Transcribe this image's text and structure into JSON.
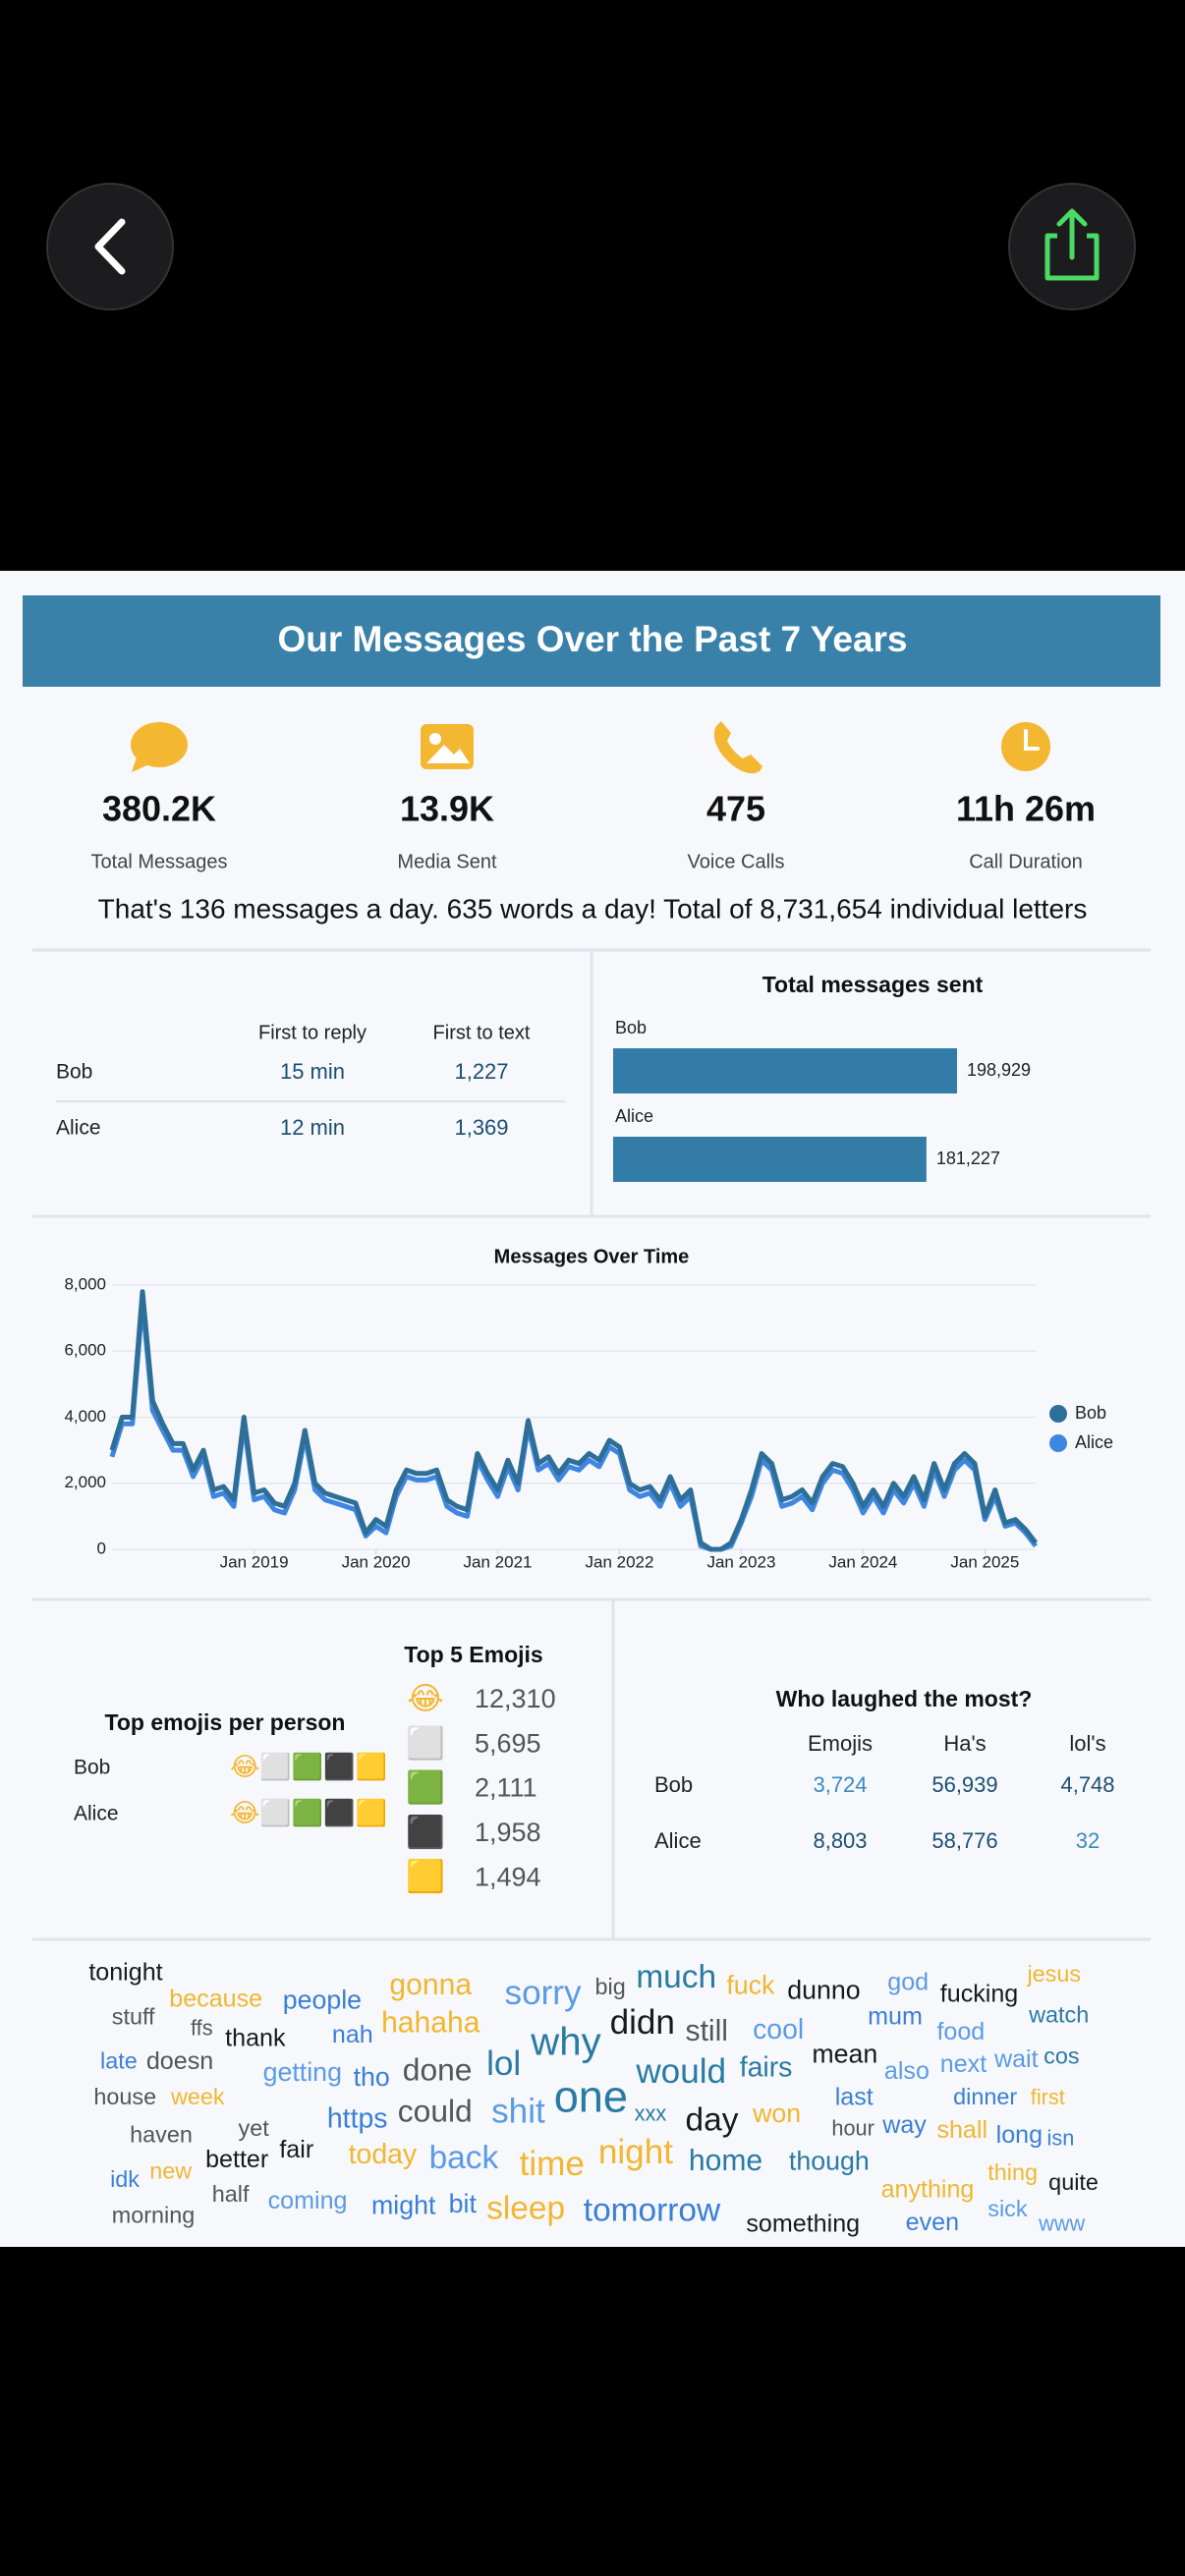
{
  "header": {
    "title": "Our Messages Over the Past 7 Years"
  },
  "stats": [
    {
      "value": "380.2K",
      "label": "Total Messages"
    },
    {
      "value": "13.9K",
      "label": "Media Sent"
    },
    {
      "value": "475",
      "label": "Voice Calls"
    },
    {
      "value": "11h 26m",
      "label": "Call Duration"
    }
  ],
  "summary": "That's 136 messages a day. 635 words a day! Total of 8,731,654 individual letters",
  "reply_table": {
    "columns": [
      "First to reply",
      "First to text"
    ],
    "rows": [
      [
        "Bob",
        "15 min",
        "1,227"
      ],
      [
        "Alice",
        "12 min",
        "1,369"
      ]
    ]
  },
  "chart_data": [
    {
      "type": "bar",
      "orientation": "horizontal",
      "title": "Total messages sent",
      "categories": [
        "Bob",
        "Alice"
      ],
      "values": [
        198929,
        181227
      ],
      "value_labels": [
        "198,929",
        "181,227"
      ],
      "color": "#337ca8"
    },
    {
      "type": "line",
      "title": "Messages Over Time",
      "x": [
        "2017-11",
        "2017-12",
        "2018-01",
        "2018-02",
        "2018-03",
        "2018-04",
        "2018-05",
        "2018-06",
        "2018-07",
        "2018-08",
        "2018-09",
        "2018-10",
        "2018-11",
        "2018-12",
        "2019-01",
        "2019-02",
        "2019-03",
        "2019-04",
        "2019-05",
        "2019-06",
        "2019-07",
        "2019-08",
        "2019-09",
        "2019-10",
        "2019-11",
        "2019-12",
        "2020-01",
        "2020-02",
        "2020-03",
        "2020-04",
        "2020-05",
        "2020-06",
        "2020-07",
        "2020-08",
        "2020-09",
        "2020-10",
        "2020-11",
        "2020-12",
        "2021-01",
        "2021-02",
        "2021-03",
        "2021-04",
        "2021-05",
        "2021-06",
        "2021-07",
        "2021-08",
        "2021-09",
        "2021-10",
        "2021-11",
        "2021-12",
        "2022-01",
        "2022-02",
        "2022-03",
        "2022-04",
        "2022-05",
        "2022-06",
        "2022-07",
        "2022-08",
        "2022-09",
        "2022-10",
        "2022-11",
        "2022-12",
        "2023-01",
        "2023-02",
        "2023-03",
        "2023-04",
        "2023-05",
        "2023-06",
        "2023-07",
        "2023-08",
        "2023-09",
        "2023-10",
        "2023-11",
        "2023-12",
        "2024-01",
        "2024-02",
        "2024-03",
        "2024-04",
        "2024-05",
        "2024-06",
        "2024-07",
        "2024-08",
        "2024-09",
        "2024-10",
        "2024-11",
        "2024-12",
        "2025-01",
        "2025-02",
        "2025-03",
        "2025-04",
        "2025-05",
        "2025-06"
      ],
      "xlim": [
        "2017-11",
        "2025-06"
      ],
      "xticks": [
        {
          "value": "2019-01",
          "label": "Jan 2019"
        },
        {
          "value": "2020-01",
          "label": "Jan 2020"
        },
        {
          "value": "2021-01",
          "label": "Jan 2021"
        },
        {
          "value": "2022-01",
          "label": "Jan 2022"
        },
        {
          "value": "2023-01",
          "label": "Jan 2023"
        },
        {
          "value": "2024-01",
          "label": "Jan 2024"
        },
        {
          "value": "2025-01",
          "label": "Jan 2025"
        }
      ],
      "ylim": [
        0,
        8000
      ],
      "yticks": [
        0,
        {
          "value": 2000,
          "label": "2,000"
        },
        {
          "value": 4000,
          "label": "4,000"
        },
        {
          "value": 6000,
          "label": "6,000"
        },
        {
          "value": 8000,
          "label": "8,000"
        }
      ],
      "grid": true,
      "legend": "right",
      "series": [
        {
          "name": "Bob",
          "color": "#2e6f97",
          "values": [
            3000,
            4000,
            4000,
            7800,
            4500,
            3800,
            3200,
            3200,
            2400,
            3000,
            1800,
            1900,
            1500,
            4000,
            1700,
            1800,
            1400,
            1300,
            2000,
            3600,
            2000,
            1700,
            1600,
            1500,
            1400,
            500,
            900,
            700,
            1800,
            2400,
            2300,
            2300,
            2400,
            1500,
            1300,
            1200,
            2900,
            2300,
            1800,
            2700,
            2000,
            3900,
            2600,
            2800,
            2300,
            2700,
            2600,
            2900,
            2700,
            3300,
            3100,
            2000,
            1800,
            1900,
            1500,
            2200,
            1500,
            1800,
            200,
            0,
            0,
            200,
            900,
            1800,
            2900,
            2600,
            1500,
            1600,
            1800,
            1400,
            2200,
            2600,
            2500,
            2000,
            1300,
            1800,
            1300,
            2000,
            1600,
            2200,
            1500,
            2600,
            1800,
            2600,
            2900,
            2600,
            1000,
            1800,
            800,
            900,
            600,
            200
          ]
        },
        {
          "name": "Alice",
          "color": "#3f86e3",
          "values": [
            2800,
            3800,
            3800,
            7500,
            4200,
            3600,
            3000,
            3000,
            2200,
            2800,
            1600,
            1700,
            1300,
            3800,
            1500,
            1600,
            1200,
            1100,
            1800,
            3400,
            1800,
            1500,
            1400,
            1300,
            1200,
            400,
            700,
            500,
            1600,
            2200,
            2100,
            2100,
            2200,
            1300,
            1100,
            1000,
            2700,
            2100,
            1600,
            2500,
            1800,
            3700,
            2400,
            2600,
            2100,
            2500,
            2400,
            2700,
            2500,
            3100,
            2900,
            1800,
            1600,
            1700,
            1300,
            2000,
            1300,
            1600,
            100,
            0,
            0,
            100,
            800,
            1600,
            2700,
            2400,
            1300,
            1400,
            1600,
            1200,
            2000,
            2400,
            2300,
            1800,
            1100,
            1600,
            1100,
            1800,
            1400,
            2000,
            1300,
            2400,
            1600,
            2400,
            2700,
            2400,
            900,
            1600,
            700,
            800,
            500,
            100
          ]
        }
      ]
    }
  ],
  "top_emojis": {
    "title": "Top 5 Emojis",
    "items": [
      {
        "emoji": "😂",
        "count": "12,310"
      },
      {
        "emoji": "⬜",
        "count": "5,695"
      },
      {
        "emoji": "🟩",
        "count": "2,111"
      },
      {
        "emoji": "⬛",
        "count": "1,958"
      },
      {
        "emoji": "🟨",
        "count": "1,494"
      }
    ]
  },
  "emojis_per_person": {
    "title": "Top emojis per person",
    "rows": [
      {
        "name": "Bob",
        "emojis": "😂⬜🟩⬛🟨"
      },
      {
        "name": "Alice",
        "emojis": "😂⬜🟩⬛🟨"
      }
    ]
  },
  "laughs": {
    "title": "Who laughed the most?",
    "columns": [
      "Emojis",
      "Ha's",
      "lol's"
    ],
    "rows": [
      [
        "Bob",
        "3,724",
        "56,939",
        "4,748"
      ],
      [
        "Alice",
        "8,803",
        "58,776",
        "32"
      ]
    ]
  },
  "word_cloud": [
    "tonight",
    "because",
    "people",
    "gonna",
    "sorry",
    "big",
    "much",
    "fuck",
    "dunno",
    "god",
    "fucking",
    "jesus",
    "stuff",
    "ffs",
    "thank",
    "nah",
    "hahaha",
    "why",
    "didn",
    "still",
    "cool",
    "mum",
    "watch",
    "food",
    "late",
    "doesn",
    "getting",
    "tho",
    "done",
    "lol",
    "would",
    "fairs",
    "mean",
    "also",
    "next",
    "wait",
    "cos",
    "house",
    "week",
    "https",
    "could",
    "shit",
    "one",
    "xxx",
    "day",
    "won",
    "last",
    "dinner",
    "first",
    "haven",
    "yet",
    "better",
    "fair",
    "today",
    "back",
    "time",
    "night",
    "home",
    "though",
    "hour",
    "way",
    "shall",
    "long",
    "isn",
    "idk",
    "new",
    "half",
    "coming",
    "might",
    "bit",
    "sleep",
    "tomorrow",
    "anything",
    "thing",
    "quite",
    "sick",
    "morning",
    "something",
    "even",
    "www"
  ]
}
